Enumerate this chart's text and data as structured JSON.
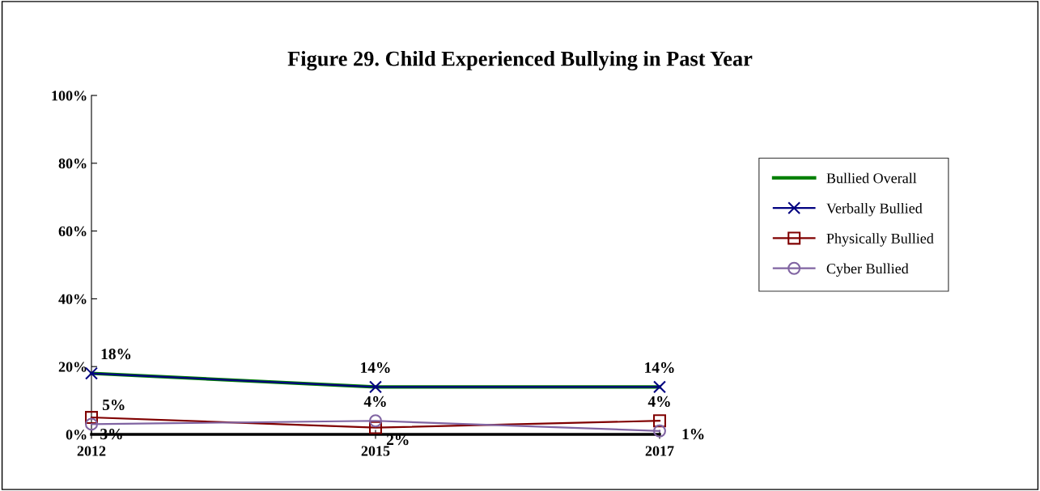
{
  "chart_data": {
    "type": "line",
    "title": "Figure 29. Child Experienced Bullying in Past Year",
    "categories": [
      "2012",
      "2015",
      "2017"
    ],
    "series": [
      {
        "name": "Bullied Overall",
        "color": "#008000",
        "values": [
          18,
          14,
          14
        ],
        "marker": "none"
      },
      {
        "name": "Verbally Bullied",
        "color": "#000080",
        "values": [
          18,
          14,
          14
        ],
        "marker": "cross",
        "value_labels": [
          "18%",
          "14%",
          "14%"
        ]
      },
      {
        "name": "Physically Bullied",
        "color": "#800000",
        "values": [
          5,
          2,
          4
        ],
        "marker": "square",
        "value_labels": [
          "5%",
          "2%",
          "4%"
        ]
      },
      {
        "name": "Cyber Bullied",
        "color": "#8064a2",
        "values": [
          3,
          4,
          1
        ],
        "marker": "circle",
        "value_labels": [
          "3%",
          "4%",
          "1%"
        ]
      }
    ],
    "ylim": [
      0,
      100
    ],
    "yticks": [
      {
        "value": 0,
        "label": "0%"
      },
      {
        "value": 20,
        "label": "20%"
      },
      {
        "value": 40,
        "label": "40%"
      },
      {
        "value": 60,
        "label": "60%"
      },
      {
        "value": 80,
        "label": "80%"
      },
      {
        "value": 100,
        "label": "100%"
      }
    ],
    "grid": false,
    "legend": "right"
  }
}
